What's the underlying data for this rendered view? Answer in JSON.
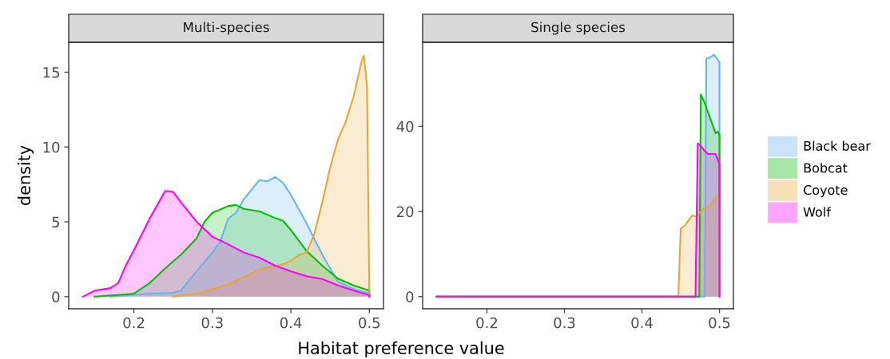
{
  "chart_data": [
    {
      "type": "area",
      "title": "Multi-species",
      "xlabel": "Habitat preference value",
      "ylabel": "density",
      "xlim": [
        0.117,
        0.518
      ],
      "ylim": [
        -0.81,
        17.0
      ],
      "xticks": [
        {
          "value": 0.2,
          "label": "0.2"
        },
        {
          "value": 0.3,
          "label": "0.3"
        },
        {
          "value": 0.4,
          "label": "0.4"
        },
        {
          "value": 0.5,
          "label": "0.5"
        }
      ],
      "yticks": [
        0,
        5,
        10,
        15
      ],
      "grid": false,
      "legend": "right",
      "series": [
        {
          "name": "Black bear",
          "color": "#66b5ee",
          "x": [
            0.17,
            0.22,
            0.25,
            0.26,
            0.28,
            0.3,
            0.31,
            0.32,
            0.33,
            0.34,
            0.36,
            0.37,
            0.38,
            0.39,
            0.4,
            0.42,
            0.44,
            0.45,
            0.46,
            0.48,
            0.5,
            0.5
          ],
          "values": [
            0,
            0.2,
            0.25,
            0.4,
            1.7,
            2.95,
            3.65,
            5.2,
            5.6,
            6.5,
            7.8,
            7.7,
            8.0,
            7.6,
            6.8,
            4.9,
            2.8,
            1.9,
            1.0,
            0.5,
            0.2,
            0
          ]
        },
        {
          "name": "Bobcat",
          "color": "#00c000",
          "x": [
            0.15,
            0.19,
            0.2,
            0.22,
            0.24,
            0.26,
            0.28,
            0.29,
            0.3,
            0.32,
            0.33,
            0.34,
            0.36,
            0.38,
            0.39,
            0.4,
            0.42,
            0.44,
            0.46,
            0.48,
            0.5,
            0.5
          ],
          "values": [
            0,
            0.15,
            0.2,
            0.9,
            1.9,
            2.8,
            3.9,
            5.0,
            5.6,
            6.05,
            6.13,
            5.87,
            5.7,
            5.25,
            5.07,
            4.45,
            3.05,
            2.07,
            1.2,
            0.75,
            0.4,
            0
          ]
        },
        {
          "name": "Coyote",
          "color": "#e8a830",
          "x": [
            0.25,
            0.28,
            0.3,
            0.32,
            0.34,
            0.36,
            0.38,
            0.39,
            0.4,
            0.41,
            0.42,
            0.43,
            0.44,
            0.45,
            0.46,
            0.47,
            0.48,
            0.49,
            0.493,
            0.497,
            0.5,
            0.5
          ],
          "values": [
            0,
            0.2,
            0.5,
            0.8,
            1.3,
            1.8,
            2.07,
            2.15,
            2.4,
            2.77,
            2.95,
            4.2,
            6.3,
            8.6,
            10.5,
            11.7,
            13.4,
            15.7,
            16.1,
            14.1,
            0.1,
            0
          ]
        },
        {
          "name": "Wolf",
          "color": "#ff00ff",
          "x": [
            0.135,
            0.15,
            0.17,
            0.18,
            0.19,
            0.2,
            0.22,
            0.24,
            0.25,
            0.26,
            0.28,
            0.3,
            0.32,
            0.34,
            0.36,
            0.38,
            0.4,
            0.42,
            0.44,
            0.46,
            0.48,
            0.5,
            0.5
          ],
          "values": [
            0,
            0.4,
            0.57,
            0.9,
            2.1,
            3.1,
            5.2,
            7.07,
            7.0,
            6.3,
            5.0,
            4.0,
            3.5,
            2.95,
            2.6,
            2.07,
            1.7,
            1.36,
            1.18,
            0.75,
            0.4,
            0.1,
            0
          ]
        }
      ]
    },
    {
      "type": "area",
      "title": "Single species",
      "xlim": [
        0.117,
        0.518
      ],
      "ylim": [
        -2.85,
        59.75
      ],
      "xticks": [
        {
          "value": 0.2,
          "label": "0.2"
        },
        {
          "value": 0.3,
          "label": "0.3"
        },
        {
          "value": 0.4,
          "label": "0.4"
        },
        {
          "value": 0.5,
          "label": "0.5"
        }
      ],
      "yticks": [
        0,
        20,
        40
      ],
      "grid": false,
      "series": [
        {
          "name": "Black bear",
          "color": "#66b5ee",
          "x": [
            0.135,
            0.481,
            0.483,
            0.488,
            0.493,
            0.497,
            0.5,
            0.5
          ],
          "values": [
            0,
            0,
            55.9,
            56.2,
            56.8,
            55.9,
            55.0,
            0
          ]
        },
        {
          "name": "Bobcat",
          "color": "#00c000",
          "x": [
            0.135,
            0.474,
            0.476,
            0.48,
            0.485,
            0.49,
            0.495,
            0.498,
            0.5,
            0.5
          ],
          "values": [
            0,
            0,
            47.5,
            45.9,
            43.4,
            40.9,
            38.4,
            38.8,
            38.0,
            0
          ]
        },
        {
          "name": "Coyote",
          "color": "#e8a830",
          "x": [
            0.135,
            0.447,
            0.45,
            0.455,
            0.46,
            0.465,
            0.47,
            0.475,
            0.48,
            0.485,
            0.49,
            0.495,
            0.498,
            0.5,
            0.5
          ],
          "values": [
            0,
            0,
            16.0,
            16.6,
            17.9,
            19.1,
            18.8,
            19.8,
            20.7,
            21.0,
            21.9,
            23.2,
            23.6,
            23.0,
            0
          ]
        },
        {
          "name": "Wolf",
          "color": "#ff00ff",
          "x": [
            0.135,
            0.469,
            0.472,
            0.475,
            0.48,
            0.485,
            0.49,
            0.495,
            0.498,
            0.5,
            0.5
          ],
          "values": [
            0,
            0,
            36.0,
            35.6,
            34.4,
            33.5,
            33.5,
            33.5,
            32.2,
            31.0,
            0
          ]
        }
      ]
    }
  ]
}
